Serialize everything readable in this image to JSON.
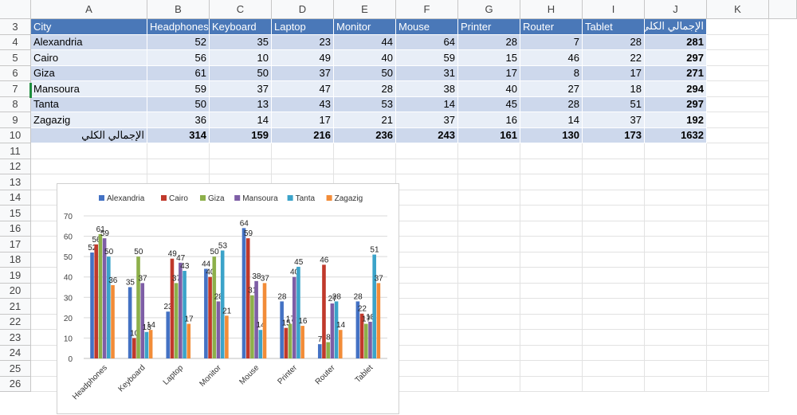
{
  "columns": [
    "A",
    "B",
    "C",
    "D",
    "E",
    "F",
    "G",
    "H",
    "I",
    "J",
    "K"
  ],
  "rows": [
    "3",
    "4",
    "5",
    "6",
    "7",
    "8",
    "9",
    "10",
    "11",
    "12",
    "13",
    "14",
    "15",
    "16",
    "17",
    "18",
    "19",
    "20",
    "21",
    "22",
    "23",
    "24",
    "25",
    "26"
  ],
  "table": {
    "headers": [
      "City",
      "Headphones",
      "Keyboard",
      "Laptop",
      "Monitor",
      "Mouse",
      "Printer",
      "Router",
      "Tablet",
      "الإجمالي الكلي"
    ],
    "body": [
      [
        "Alexandria",
        "52",
        "35",
        "23",
        "44",
        "64",
        "28",
        "7",
        "28",
        "281"
      ],
      [
        "Cairo",
        "56",
        "10",
        "49",
        "40",
        "59",
        "15",
        "46",
        "22",
        "297"
      ],
      [
        "Giza",
        "61",
        "50",
        "37",
        "50",
        "31",
        "17",
        "8",
        "17",
        "271"
      ],
      [
        "Mansoura",
        "59",
        "37",
        "47",
        "28",
        "38",
        "40",
        "27",
        "18",
        "294"
      ],
      [
        "Tanta",
        "50",
        "13",
        "43",
        "53",
        "14",
        "45",
        "28",
        "51",
        "297"
      ],
      [
        "Zagazig",
        "36",
        "14",
        "17",
        "21",
        "37",
        "16",
        "14",
        "37",
        "192"
      ]
    ],
    "total": [
      "الإجمالي الكلي",
      "314",
      "159",
      "216",
      "236",
      "243",
      "161",
      "130",
      "173",
      "1632"
    ]
  },
  "chart_data": {
    "type": "bar",
    "categories": [
      "Headphones",
      "Keyboard",
      "Laptop",
      "Monitor",
      "Mouse",
      "Printer",
      "Router",
      "Tablet"
    ],
    "series": [
      {
        "name": "Alexandria",
        "color": "#4472c4",
        "values": [
          52,
          35,
          23,
          44,
          64,
          28,
          7,
          28
        ]
      },
      {
        "name": "Cairo",
        "color": "#c0392b",
        "values": [
          56,
          10,
          49,
          40,
          59,
          15,
          46,
          22
        ]
      },
      {
        "name": "Giza",
        "color": "#8db04a",
        "values": [
          61,
          50,
          37,
          50,
          31,
          17,
          8,
          17
        ]
      },
      {
        "name": "Mansoura",
        "color": "#7e5ea6",
        "values": [
          59,
          37,
          47,
          28,
          38,
          40,
          27,
          18
        ]
      },
      {
        "name": "Tanta",
        "color": "#3ba3c9",
        "values": [
          50,
          13,
          43,
          53,
          14,
          45,
          28,
          51
        ]
      },
      {
        "name": "Zagazig",
        "color": "#f28c38",
        "values": [
          36,
          14,
          17,
          21,
          37,
          16,
          14,
          37
        ]
      }
    ],
    "yticks": [
      "0",
      "10",
      "20",
      "30",
      "40",
      "50",
      "60",
      "70"
    ],
    "ylim": [
      0,
      70
    ],
    "grid": true,
    "legend": "top"
  }
}
